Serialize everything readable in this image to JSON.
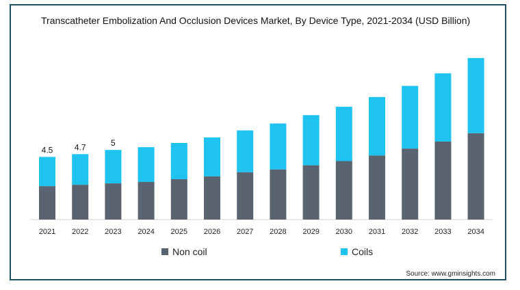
{
  "chart_data": {
    "type": "bar",
    "stacked": true,
    "title": "Transcatheter Embolization And Occlusion Devices Market, By Device Type, 2021-2034 (USD Billion)",
    "categories": [
      "2021",
      "2022",
      "2023",
      "2024",
      "2025",
      "2026",
      "2027",
      "2028",
      "2029",
      "2030",
      "2031",
      "2032",
      "2033",
      "2034"
    ],
    "series": [
      {
        "name": "Non coil",
        "color": "#5a6470",
        "values": [
          2.4,
          2.5,
          2.6,
          2.7,
          2.9,
          3.1,
          3.4,
          3.6,
          3.9,
          4.2,
          4.6,
          5.1,
          5.6,
          6.2
        ]
      },
      {
        "name": "Coils",
        "color": "#1fc3ef",
        "values": [
          2.1,
          2.2,
          2.4,
          2.5,
          2.6,
          2.8,
          3.0,
          3.3,
          3.6,
          3.9,
          4.2,
          4.5,
          4.9,
          5.4
        ]
      }
    ],
    "data_labels": [
      "4.5",
      "4.7",
      "5",
      "",
      "",
      "",
      "",
      "",
      "",
      "",
      "",
      "",
      "",
      ""
    ],
    "ylim": [
      0,
      14
    ],
    "grid": false,
    "legend_position": "bottom"
  },
  "source": "Source: www.gminsights.com"
}
